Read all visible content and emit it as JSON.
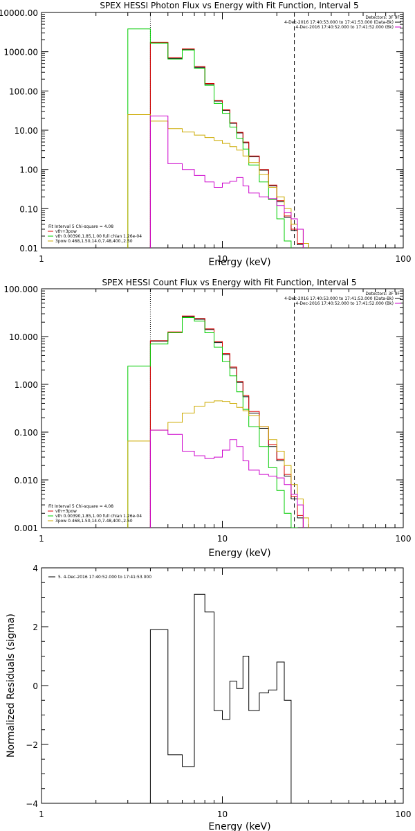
{
  "chart_data": [
    {
      "type": "line",
      "title": "SPEX HESSI Photon Flux vs Energy with Fit Function, Interval 5",
      "xlabel": "Energy (keV)",
      "ylabel": "",
      "xscale": "log",
      "yscale": "log",
      "xlim": [
        1,
        100
      ],
      "ylim": [
        0.01,
        10000
      ],
      "xticks": [
        1,
        10,
        100
      ],
      "xtick_labels": [
        "1",
        "10",
        "100"
      ],
      "yticks": [
        0.01,
        0.1,
        1,
        10,
        100,
        1000,
        10000
      ],
      "ytick_labels": [
        "0.01",
        "0.10",
        "1.00",
        "10.00",
        "100.00",
        "1000.00",
        "10000.00"
      ],
      "vlines": [
        {
          "x": 4.0,
          "style": "dotted",
          "color": "#000000"
        },
        {
          "x": 25.0,
          "style": "dashed",
          "color": "#000000"
        }
      ],
      "legend_top_right": {
        "lines": [
          {
            "text": "Detectors: 3F 9F",
            "color": ""
          },
          {
            "text": "4-Dec-2016 17:40:53.000 to 17:41:53.000 (Data-Bk)",
            "color": "#000000"
          },
          {
            "text": "4-Dec-2016 17:40:52.000 to 17:41:52.000 (Bk)",
            "color": "#cc00cc"
          }
        ]
      },
      "legend_bottom_left": {
        "lines": [
          {
            "text": "Fit Interval 5   Chi-square = 4.08",
            "color": ""
          },
          {
            "text": "vth+3pow",
            "color": "#dd0000"
          },
          {
            "text": "vth 0.00390,1.85,1.00  full chian 1.26e-04",
            "color": "#00cc00"
          },
          {
            "text": "3pow 0.468,1.50,14.0,7.48,400.,2.50",
            "color": "#ccaa00"
          }
        ]
      },
      "edges": [
        3.0,
        4.0,
        5.0,
        6.0,
        7.0,
        8.0,
        9.0,
        10.0,
        11.0,
        12.0,
        13.0,
        14.0,
        16.0,
        18.0,
        20.0,
        22.0,
        24.0,
        26.0,
        28.0,
        30.0
      ],
      "series": [
        {
          "name": "",
          "color": "#000000",
          "start_bin": 1,
          "values": [
            1700,
            680,
            1150,
            400,
            150,
            55,
            32,
            15,
            8.5,
            4.8,
            2.1,
            0.95,
            0.38,
            0.15,
            0.06,
            0.028,
            0.012
          ]
        },
        {
          "name": "vth+3pow",
          "color": "#dd0000",
          "start_bin": 1,
          "values": [
            1720,
            700,
            1180,
            420,
            155,
            57,
            33,
            15.5,
            8.8,
            5.0,
            2.2,
            1.0,
            0.4,
            0.16,
            0.065,
            0.03,
            0.013
          ]
        },
        {
          "name": "vth",
          "color": "#00cc00",
          "start_bin": 0,
          "values": [
            3800,
            1650,
            650,
            1100,
            380,
            140,
            48,
            27,
            12,
            6.2,
            3.3,
            1.3,
            0.48,
            0.17,
            0.055,
            0.015,
            0.005
          ]
        },
        {
          "name": "3pow",
          "color": "#ccaa00",
          "start_bin": 0,
          "values": [
            25,
            17,
            11,
            9,
            7.5,
            6.5,
            5.5,
            4.6,
            3.8,
            3.1,
            2.2,
            1.5,
            0.75,
            0.35,
            0.2,
            0.1,
            0.04,
            0.03,
            0.013
          ]
        },
        {
          "name": "",
          "color": "#cc00cc",
          "start_bin": 1,
          "values": [
            23,
            1.4,
            1.0,
            0.7,
            0.48,
            0.35,
            0.45,
            0.5,
            0.62,
            0.38,
            0.25,
            0.2,
            0.18,
            0.12,
            0.08,
            0.055,
            0.03
          ]
        }
      ]
    },
    {
      "type": "line",
      "title": "SPEX HESSI Count Flux vs Energy with Fit Function, Interval 5",
      "xlabel": "Energy (keV)",
      "ylabel": "",
      "xscale": "log",
      "yscale": "log",
      "xlim": [
        1,
        100
      ],
      "ylim": [
        0.001,
        100
      ],
      "xticks": [
        1,
        10,
        100
      ],
      "xtick_labels": [
        "1",
        "10",
        "100"
      ],
      "yticks": [
        0.001,
        0.01,
        0.1,
        1,
        10,
        100
      ],
      "ytick_labels": [
        "0.001",
        "0.010",
        "0.100",
        "1.000",
        "10.000",
        "100.000"
      ],
      "vlines": [
        {
          "x": 4.0,
          "style": "dotted",
          "color": "#000000"
        },
        {
          "x": 25.0,
          "style": "dashed",
          "color": "#000000"
        }
      ],
      "legend_top_right": {
        "lines": [
          {
            "text": "Detectors: 3F 9F",
            "color": ""
          },
          {
            "text": "4-Dec-2016 17:40:53.000 to 17:41:53.000 (Data-Bk)",
            "color": "#000000"
          },
          {
            "text": "4-Dec-2016 17:40:52.000 to 17:41:52.000 (Bk)",
            "color": "#cc00cc"
          }
        ]
      },
      "legend_bottom_left": {
        "lines": [
          {
            "text": "Fit Interval 5   Chi-square = 4.08",
            "color": ""
          },
          {
            "text": "vth+3pow",
            "color": "#dd0000"
          },
          {
            "text": "vth 0.00390,1.85,1.00  full chian 1.26e-04",
            "color": "#00cc00"
          },
          {
            "text": "3pow 0.468,1.50,14.0,7.48,400.,2.50",
            "color": "#ccaa00"
          }
        ]
      },
      "edges": [
        3.0,
        4.0,
        5.0,
        6.0,
        7.0,
        8.0,
        9.0,
        10.0,
        11.0,
        12.0,
        13.0,
        14.0,
        16.0,
        18.0,
        20.0,
        22.0,
        24.0,
        26.0,
        28.0,
        30.0
      ],
      "series": [
        {
          "name": "",
          "color": "#000000",
          "start_bin": 1,
          "values": [
            8,
            12,
            26,
            23,
            14,
            7.5,
            4.2,
            2.2,
            1.1,
            0.55,
            0.25,
            0.12,
            0.05,
            0.025,
            0.012,
            0.004,
            0.0016
          ]
        },
        {
          "name": "vth+3pow",
          "color": "#dd0000",
          "start_bin": 1,
          "values": [
            8.2,
            12.5,
            27,
            24,
            14.5,
            7.8,
            4.4,
            2.3,
            1.15,
            0.58,
            0.27,
            0.13,
            0.055,
            0.027,
            0.013,
            0.0045,
            0.0018
          ]
        },
        {
          "name": "vth",
          "color": "#00cc00",
          "start_bin": 0,
          "values": [
            2.4,
            7,
            12,
            25,
            21,
            12,
            6,
            3,
            1.5,
            0.7,
            0.3,
            0.13,
            0.05,
            0.018,
            0.006,
            0.002,
            0.001
          ]
        },
        {
          "name": "3pow",
          "color": "#ccaa00",
          "start_bin": 0,
          "values": [
            0.065,
            0.11,
            0.16,
            0.25,
            0.35,
            0.42,
            0.45,
            0.44,
            0.4,
            0.33,
            0.28,
            0.22,
            0.13,
            0.07,
            0.04,
            0.02,
            0.008,
            0.004,
            0.0016
          ]
        },
        {
          "name": "",
          "color": "#cc00cc",
          "start_bin": 1,
          "values": [
            0.11,
            0.09,
            0.04,
            0.032,
            0.028,
            0.03,
            0.042,
            0.07,
            0.05,
            0.025,
            0.016,
            0.013,
            0.012,
            0.011,
            0.008,
            0.005,
            0.003
          ]
        }
      ]
    },
    {
      "type": "line",
      "title": "",
      "xlabel": "Energy (keV)",
      "ylabel": "Normalized Residuals (sigma)",
      "xscale": "log",
      "yscale": "linear",
      "xlim": [
        1,
        100
      ],
      "ylim": [
        -4,
        4
      ],
      "xticks": [
        1,
        10,
        100
      ],
      "xtick_labels": [
        "1",
        "10",
        "100"
      ],
      "yticks": [
        -4,
        -2,
        0,
        2,
        4
      ],
      "ytick_labels": [
        "−4",
        "−2",
        "0",
        "2",
        "4"
      ],
      "legend": {
        "label": "5.  4-Dec-2016 17:40:52.000 to 17:41:53.000",
        "color": "#000000"
      },
      "edges": [
        4.0,
        5.0,
        6.0,
        7.0,
        8.0,
        9.0,
        10.0,
        11.0,
        12.0,
        13.0,
        14.0,
        16.0,
        18.0,
        20.0,
        22.0,
        24.0,
        25.0
      ],
      "series": [
        {
          "name": "5.",
          "color": "#000000",
          "values": [
            1.9,
            -2.35,
            -2.75,
            3.1,
            2.5,
            -0.85,
            -1.15,
            0.15,
            -0.1,
            1.0,
            -0.85,
            -0.25,
            -0.15,
            0.8,
            -0.5,
            -4.0
          ]
        }
      ]
    }
  ]
}
